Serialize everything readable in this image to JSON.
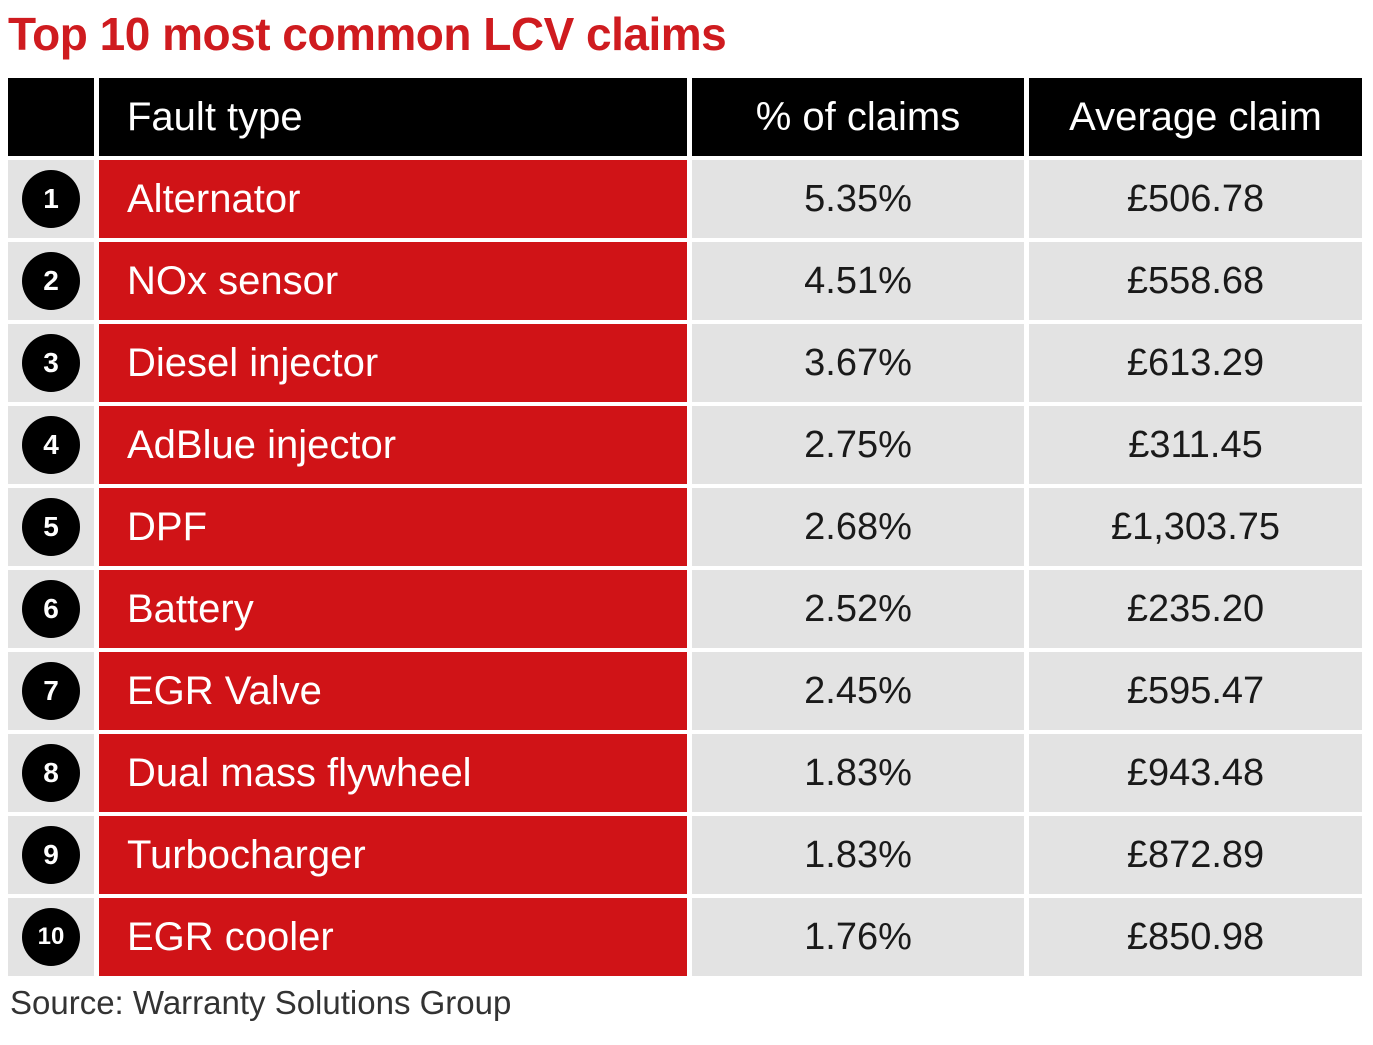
{
  "title": "Top 10 most common LCV claims",
  "source": "Source: Warranty Solutions Group",
  "colors": {
    "title": "#cf1b1f",
    "fault_cell": "#d01317",
    "header_bg": "#000000",
    "value_cell": "#e3e3e3"
  },
  "chart_data": {
    "type": "table",
    "title": "Top 10 most common LCV claims",
    "columns": [
      "",
      "Fault type",
      "% of claims",
      "Average claim"
    ],
    "rows": [
      {
        "rank": "1",
        "fault": "Alternator",
        "pct": "5.35%",
        "avg": "£506.78"
      },
      {
        "rank": "2",
        "fault": "NOx sensor",
        "pct": "4.51%",
        "avg": "£558.68"
      },
      {
        "rank": "3",
        "fault": "Diesel injector",
        "pct": "3.67%",
        "avg": "£613.29"
      },
      {
        "rank": "4",
        "fault": "AdBlue injector",
        "pct": "2.75%",
        "avg": "£311.45"
      },
      {
        "rank": "5",
        "fault": "DPF",
        "pct": "2.68%",
        "avg": "£1,303.75"
      },
      {
        "rank": "6",
        "fault": "Battery",
        "pct": "2.52%",
        "avg": "£235.20"
      },
      {
        "rank": "7",
        "fault": "EGR Valve",
        "pct": "2.45%",
        "avg": "£595.47"
      },
      {
        "rank": "8",
        "fault": "Dual mass flywheel",
        "pct": "1.83%",
        "avg": "£943.48"
      },
      {
        "rank": "9",
        "fault": "Turbocharger",
        "pct": "1.83%",
        "avg": "£872.89"
      },
      {
        "rank": "10",
        "fault": "EGR cooler",
        "pct": "1.76%",
        "avg": "£850.98"
      }
    ],
    "source": "Source: Warranty Solutions Group"
  }
}
